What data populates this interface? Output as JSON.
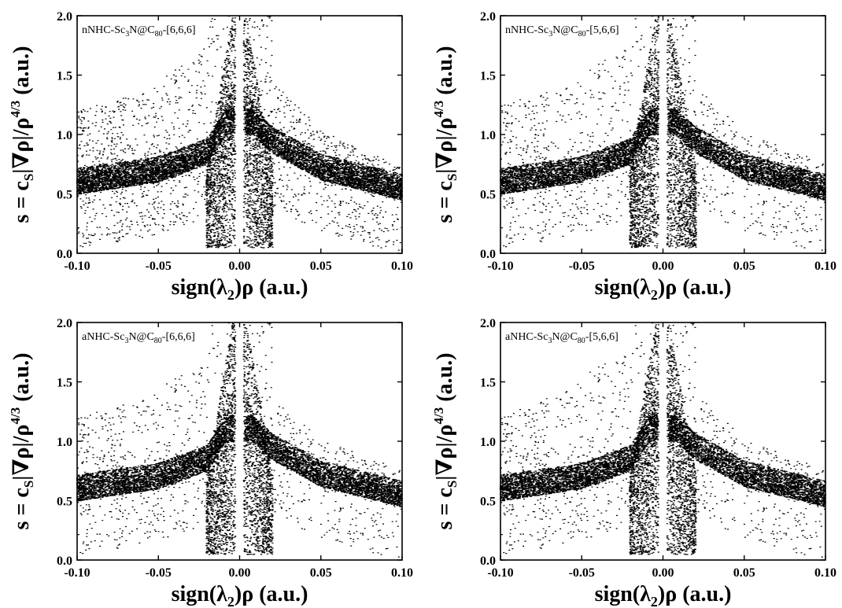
{
  "figure": {
    "x_ticks": [
      "-0.10",
      "-0.05",
      "0.00",
      "0.05",
      "0.10"
    ],
    "y_ticks": [
      "0.0",
      "0.5",
      "1.0",
      "1.5",
      "2.0"
    ]
  },
  "chart_data": [
    {
      "type": "scatter",
      "label": {
        "prefix": "nNHC-Sc",
        "sub1": "3",
        "mid": "N@C",
        "sub2": "80",
        "suffix": "-[6,6,6]"
      },
      "xlabel": {
        "pre": "sign(λ",
        "sub": "2",
        "post": ")ρ (a.u.)"
      },
      "ylabel": {
        "s": "s = c",
        "sub": "S",
        "mid": "|∇ρ|/ρ",
        "sup": "4/3",
        "post": " (a.u.)"
      },
      "xlim": [
        -0.1,
        0.1
      ],
      "ylim": [
        0.0,
        2.0
      ],
      "envelope": {
        "lower_left": [
          [
            -0.1,
            0.5
          ],
          [
            -0.05,
            0.6
          ],
          [
            -0.02,
            0.75
          ],
          [
            -0.008,
            1.0
          ]
        ],
        "upper_left": [
          [
            -0.1,
            1.2
          ],
          [
            -0.05,
            1.45
          ],
          [
            -0.02,
            1.75
          ]
        ],
        "lower_right": [
          [
            0.008,
            1.0
          ],
          [
            0.02,
            0.85
          ],
          [
            0.05,
            0.62
          ],
          [
            0.1,
            0.45
          ]
        ],
        "upper_right": [
          [
            0.02,
            1.45
          ],
          [
            0.05,
            1.05
          ],
          [
            0.1,
            0.72
          ]
        ],
        "low_spikes": [
          [
            -0.006,
            0.05
          ],
          [
            0.006,
            0.05
          ]
        ]
      }
    },
    {
      "type": "scatter",
      "label": {
        "prefix": "nNHC-Sc",
        "sub1": "3",
        "mid": "N@C",
        "sub2": "80",
        "suffix": "-[5,6,6]"
      },
      "xlabel": {
        "pre": "sign(λ",
        "sub": "2",
        "post": ")ρ (a.u.)"
      },
      "ylabel": {
        "s": "s = c",
        "sub": "S",
        "mid": "|∇ρ|/ρ",
        "sup": "4/3",
        "post": " (a.u.)"
      },
      "xlim": [
        -0.1,
        0.1
      ],
      "ylim": [
        0.0,
        2.0
      ],
      "envelope": {
        "lower_left": [
          [
            -0.1,
            0.5
          ],
          [
            -0.05,
            0.6
          ],
          [
            -0.02,
            0.75
          ],
          [
            -0.008,
            1.0
          ]
        ],
        "upper_left": [
          [
            -0.1,
            1.25
          ],
          [
            -0.05,
            1.5
          ],
          [
            -0.02,
            1.8
          ]
        ],
        "lower_right": [
          [
            0.008,
            1.0
          ],
          [
            0.02,
            0.85
          ],
          [
            0.05,
            0.62
          ],
          [
            0.1,
            0.45
          ]
        ],
        "upper_right": [
          [
            0.02,
            1.4
          ],
          [
            0.05,
            1.05
          ],
          [
            0.1,
            0.75
          ]
        ],
        "low_spikes": [
          [
            -0.006,
            0.05
          ],
          [
            0.006,
            0.05
          ]
        ]
      }
    },
    {
      "type": "scatter",
      "label": {
        "prefix": "aNHC-Sc",
        "sub1": "3",
        "mid": "N@C",
        "sub2": "80",
        "suffix": "-[6,6,6]"
      },
      "xlabel": {
        "pre": "sign(λ",
        "sub": "2",
        "post": ")ρ (a.u.)"
      },
      "ylabel": {
        "s": "s = c",
        "sub": "S",
        "mid": "|∇ρ|/ρ",
        "sup": "4/3",
        "post": " (a.u.)"
      },
      "xlim": [
        -0.1,
        0.1
      ],
      "ylim": [
        0.0,
        2.0
      ],
      "envelope": {
        "lower_left": [
          [
            -0.1,
            0.5
          ],
          [
            -0.05,
            0.6
          ],
          [
            -0.02,
            0.75
          ],
          [
            -0.008,
            1.0
          ]
        ],
        "upper_left": [
          [
            -0.1,
            1.2
          ],
          [
            -0.05,
            1.45
          ],
          [
            -0.02,
            1.7
          ]
        ],
        "lower_right": [
          [
            0.008,
            1.0
          ],
          [
            0.02,
            0.85
          ],
          [
            0.05,
            0.62
          ],
          [
            0.1,
            0.45
          ]
        ],
        "upper_right": [
          [
            0.02,
            1.35
          ],
          [
            0.05,
            1.05
          ],
          [
            0.1,
            0.75
          ]
        ],
        "low_spikes": [
          [
            -0.006,
            0.05
          ],
          [
            0.006,
            0.05
          ]
        ]
      }
    },
    {
      "type": "scatter",
      "label": {
        "prefix": "aNHC-Sc",
        "sub1": "3",
        "mid": "N@C",
        "sub2": "80",
        "suffix": "-[5,6,6]"
      },
      "xlabel": {
        "pre": "sign(λ",
        "sub": "2",
        "post": ")ρ (a.u.)"
      },
      "ylabel": {
        "s": "s = c",
        "sub": "S",
        "mid": "|∇ρ|/ρ",
        "sup": "4/3",
        "post": " (a.u.)"
      },
      "xlim": [
        -0.1,
        0.1
      ],
      "ylim": [
        0.0,
        2.0
      ],
      "envelope": {
        "lower_left": [
          [
            -0.1,
            0.5
          ],
          [
            -0.05,
            0.6
          ],
          [
            -0.02,
            0.75
          ],
          [
            -0.008,
            1.0
          ]
        ],
        "upper_left": [
          [
            -0.1,
            1.2
          ],
          [
            -0.05,
            1.55
          ],
          [
            -0.02,
            1.8
          ]
        ],
        "lower_right": [
          [
            0.008,
            1.0
          ],
          [
            0.02,
            0.85
          ],
          [
            0.05,
            0.62
          ],
          [
            0.1,
            0.45
          ]
        ],
        "upper_right": [
          [
            0.02,
            1.4
          ],
          [
            0.05,
            1.05
          ],
          [
            0.1,
            0.75
          ]
        ],
        "low_spikes": [
          [
            -0.006,
            0.05
          ],
          [
            0.006,
            0.05
          ]
        ]
      }
    }
  ]
}
